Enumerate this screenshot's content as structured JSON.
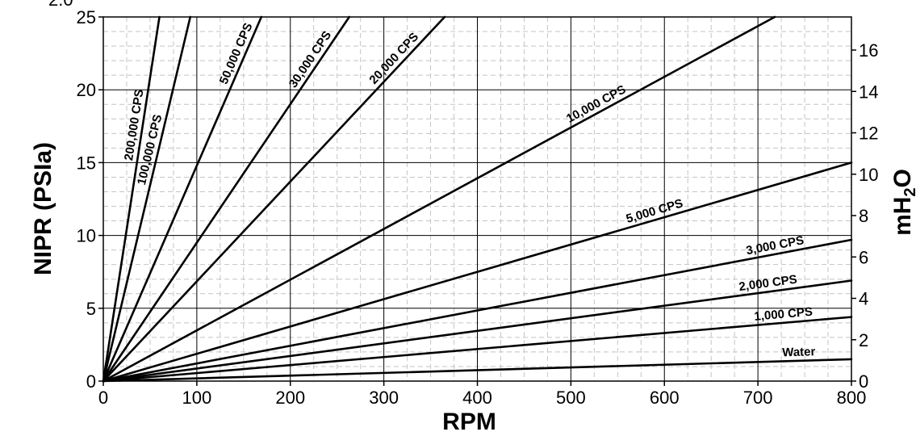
{
  "chart_data": {
    "type": "line",
    "title": "",
    "xlabel": "RPM",
    "ylabel": "NIPR (PSIa)",
    "y2label_main": "mH",
    "y2label_sub": "2",
    "y2label_end": "O",
    "xlim": [
      0,
      800
    ],
    "ylim": [
      0,
      25
    ],
    "y2lim": [
      0,
      17.6
    ],
    "grid": true,
    "legend": "none",
    "x_ticks": [
      "0",
      "100",
      "200",
      "300",
      "400",
      "500",
      "600",
      "700",
      "800"
    ],
    "y_ticks": [
      "0",
      "5",
      "10",
      "15",
      "20",
      "25"
    ],
    "y2_ticks": [
      "0",
      "2",
      "4",
      "6",
      "8",
      "10",
      "12",
      "14",
      "16"
    ],
    "y_top_partial": "2.0",
    "series": [
      {
        "name": "200,000 CPS",
        "x": [
          0,
          60
        ],
        "y": [
          0,
          25
        ]
      },
      {
        "name": "100,000 CPS",
        "x": [
          0,
          93
        ],
        "y": [
          0,
          25
        ]
      },
      {
        "name": "50,000 CPS",
        "x": [
          0,
          169
        ],
        "y": [
          0,
          25
        ]
      },
      {
        "name": "30,000 CPS",
        "x": [
          0,
          263
        ],
        "y": [
          0,
          25
        ]
      },
      {
        "name": "20,000 CPS",
        "x": [
          0,
          365
        ],
        "y": [
          0,
          25
        ]
      },
      {
        "name": "10,000 CPS",
        "x": [
          0,
          718
        ],
        "y": [
          0,
          25
        ]
      },
      {
        "name": "5,000 CPS",
        "x": [
          0,
          800
        ],
        "y": [
          0,
          15
        ]
      },
      {
        "name": "3,000 CPS",
        "x": [
          0,
          800
        ],
        "y": [
          0,
          9.7
        ]
      },
      {
        "name": "2,000 CPS",
        "x": [
          0,
          800
        ],
        "y": [
          0,
          6.9
        ]
      },
      {
        "name": "1,000 CPS",
        "x": [
          0,
          800
        ],
        "y": [
          0,
          4.4
        ]
      },
      {
        "name": "Water",
        "x": [
          0,
          800
        ],
        "y": [
          0,
          1.5
        ]
      }
    ]
  }
}
